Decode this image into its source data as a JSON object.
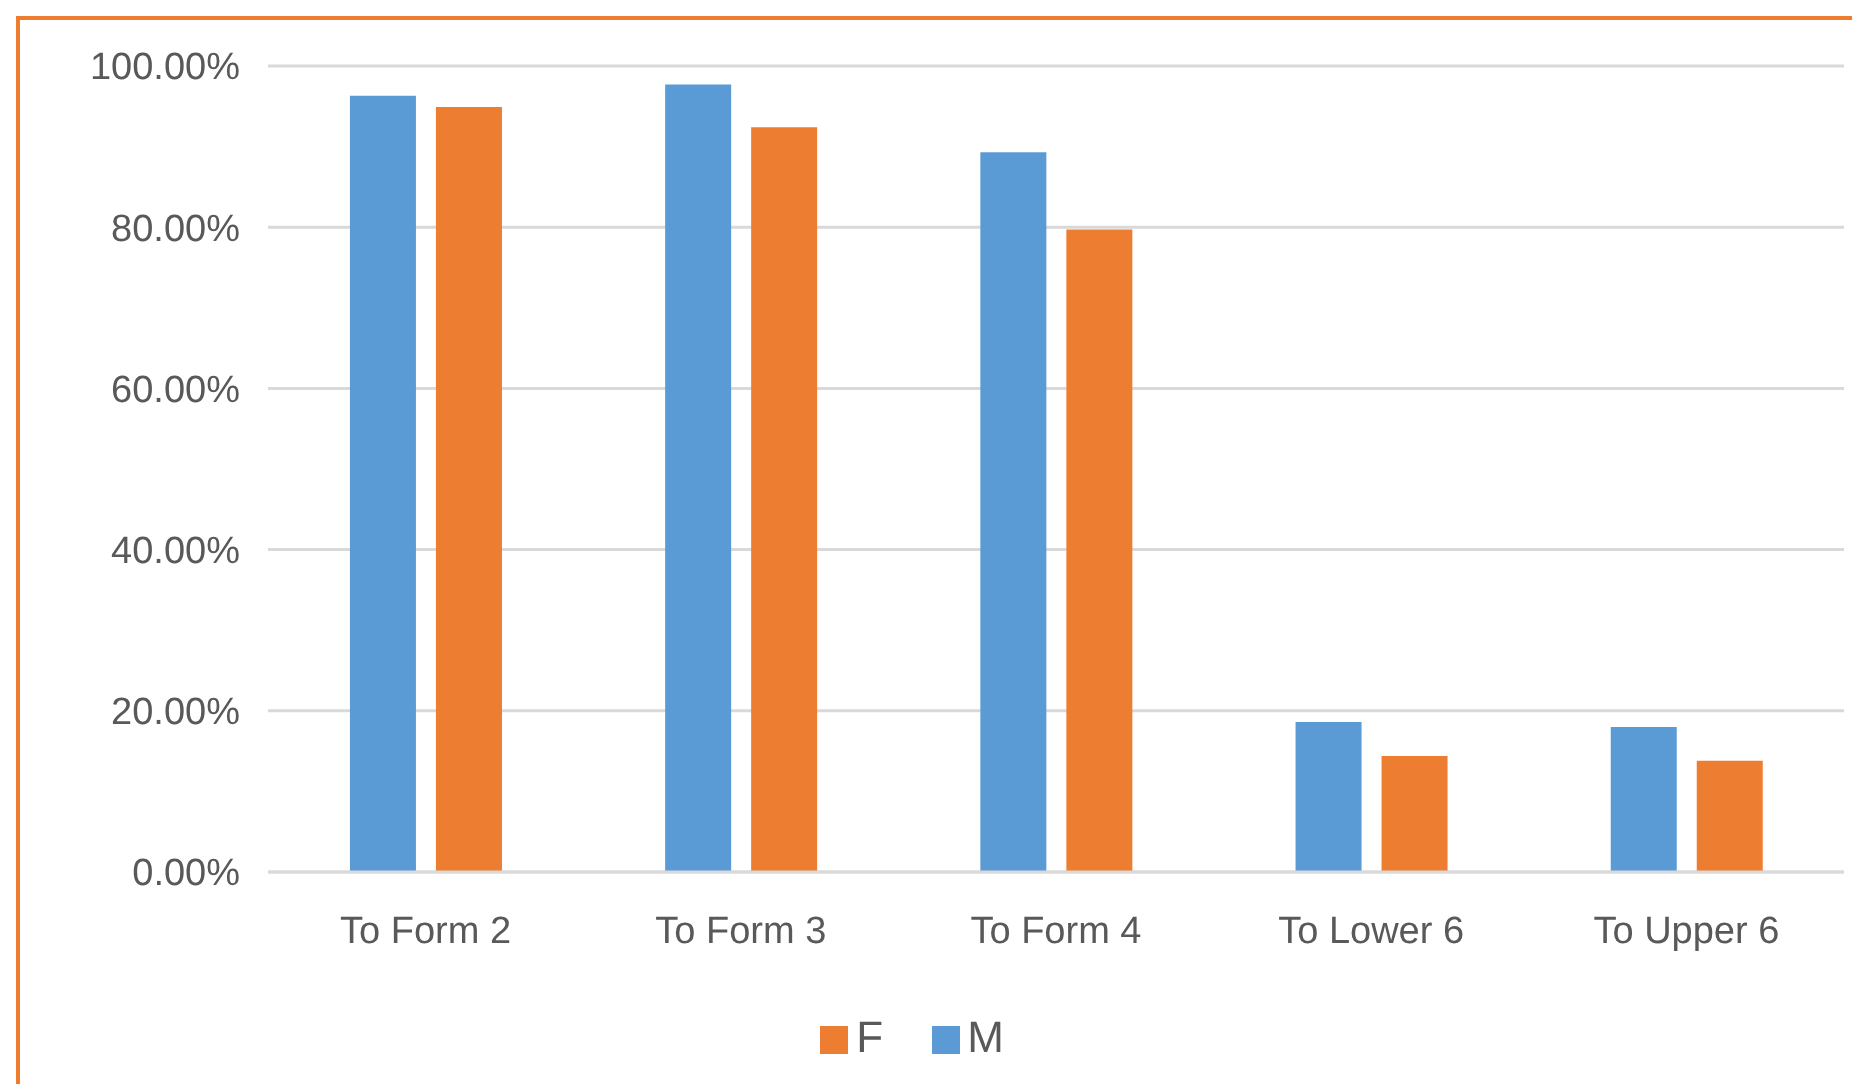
{
  "chart_data": {
    "type": "bar",
    "categories": [
      "To Form 2",
      "To Form 3",
      "To Form 4",
      "To Lower 6",
      "To Upper 6"
    ],
    "series": [
      {
        "name": "M",
        "color": "#5b9bd5",
        "values": [
          96.3,
          97.7,
          89.3,
          18.6,
          18.0
        ]
      },
      {
        "name": "F",
        "color": "#ed7d31",
        "values": [
          94.9,
          92.4,
          79.7,
          14.4,
          13.8
        ]
      }
    ],
    "ylim": [
      0,
      100
    ],
    "yticks": [
      {
        "value": 0,
        "label": "0.00%"
      },
      {
        "value": 20,
        "label": "20.00%"
      },
      {
        "value": 40,
        "label": "40.00%"
      },
      {
        "value": 60,
        "label": "60.00%"
      },
      {
        "value": 80,
        "label": "80.00%"
      },
      {
        "value": 100,
        "label": "100.00%"
      }
    ],
    "grid": "y",
    "legend": "bottom"
  }
}
